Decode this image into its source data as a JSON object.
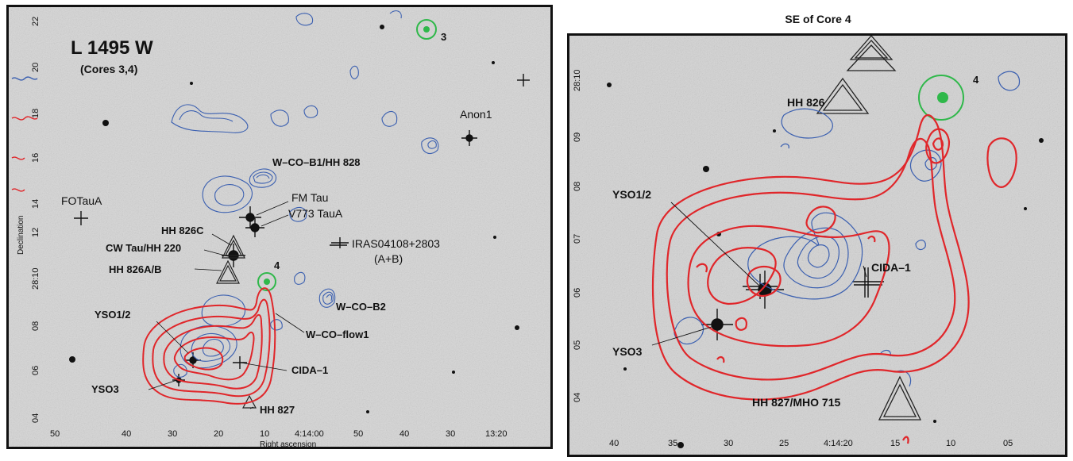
{
  "left_panel": {
    "title": "L 1495 W",
    "subtitle": "(Cores 3,4)",
    "labels": {
      "core3": "3",
      "core4": "4",
      "anon1": "Anon1",
      "wcob1": "W–CO–B1/HH 828",
      "fotau": "FOTauA",
      "fmtau": "FM Tau",
      "v773": "V773 TauA",
      "hh826c": "HH 826C",
      "cwtau": "CW Tau/HH 220",
      "iras": "IRAS04108+2803",
      "iras_ab": "(A+B)",
      "hh826ab": "HH 826A/B",
      "wcob2": "W–CO–B2",
      "yso12": "YSO1/2",
      "wcoflow1": "W–CO–flow1",
      "cida1": "CIDA–1",
      "yso3": "YSO3",
      "hh827": "HH 827"
    },
    "x_ticks": [
      "50",
      "40",
      "30",
      "20",
      "10",
      "4:14:00",
      "50",
      "40",
      "30",
      "13:20"
    ],
    "y_ticks": [
      "22",
      "20",
      "18",
      "16",
      "14",
      "12",
      "28:10",
      "08",
      "06",
      "04"
    ],
    "xlabel": "Right ascension",
    "ylabel": "Declination"
  },
  "right_panel": {
    "title": "SE of Core 4",
    "labels": {
      "core4": "4",
      "hh826": "HH 826",
      "yso12": "YSO1/2",
      "cida1": "CIDA–1",
      "yso3": "YSO3",
      "hh827": "HH 827/MHO 715"
    },
    "x_ticks": [
      "40",
      "35",
      "30",
      "25",
      "4:14:20",
      "15",
      "10",
      "05"
    ],
    "y_ticks": [
      "28:10",
      "09",
      "08",
      "07",
      "06",
      "05",
      "04"
    ]
  },
  "colors": {
    "red_contour": "#e0262a",
    "blue_contour": "#3a5fb0",
    "green_marker": "#2fb84a",
    "background": "#d9d9d9"
  }
}
